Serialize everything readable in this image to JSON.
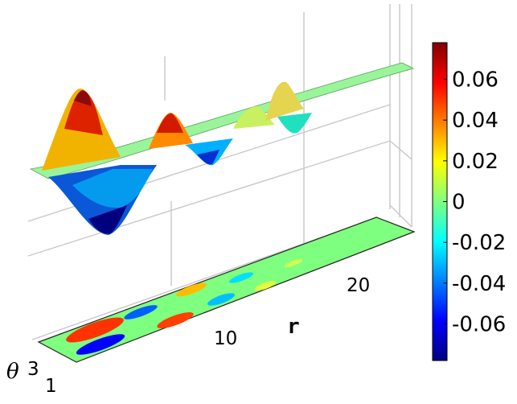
{
  "chart_data": {
    "type": "surface",
    "title": "",
    "xlabel": "r",
    "ylabel": "θ",
    "x_ticks": [
      10,
      20
    ],
    "y_ticks": [
      1,
      3
    ],
    "xlim": [
      0,
      27
    ],
    "ylim": [
      0,
      4
    ],
    "zlim": [
      -0.08,
      0.08
    ],
    "colormap": "jet",
    "colorbar": {
      "range": [
        -0.078,
        0.078
      ],
      "ticks": [
        0.06,
        0.04,
        0.02,
        0,
        -0.02,
        -0.04,
        -0.06
      ],
      "tick_labels": [
        "0.06",
        "0.04",
        "0.02",
        "0",
        "-0.02",
        "-0.04",
        "-0.06"
      ],
      "placement": "right"
    },
    "has_projection": true,
    "grid": true,
    "series": [
      {
        "profile_r": [
          0,
          1,
          2,
          3,
          4,
          5,
          6,
          7,
          8,
          9,
          10,
          11,
          12,
          13,
          14,
          15,
          16,
          17,
          18,
          19,
          20,
          21,
          22,
          23,
          24,
          25,
          26,
          27
        ],
        "profile_amplitude": [
          0.0,
          0.02,
          0.055,
          0.075,
          0.05,
          0.0,
          -0.035,
          -0.02,
          0.045,
          0.03,
          -0.01,
          -0.03,
          0.005,
          0.03,
          0.015,
          -0.015,
          -0.02,
          0.0,
          0.02,
          0.01,
          -0.005,
          -0.005,
          0.0,
          0.005,
          0.0,
          0.0,
          0.0,
          0.0
        ]
      }
    ]
  }
}
